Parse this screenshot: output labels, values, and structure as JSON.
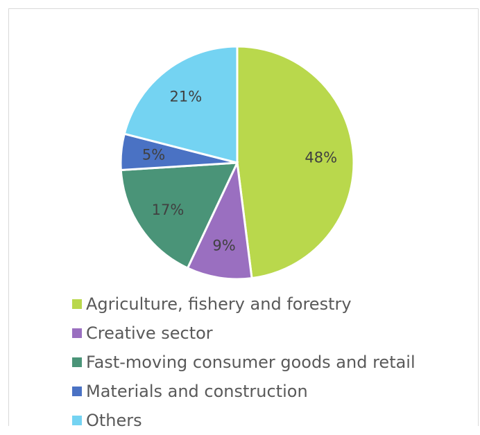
{
  "chart_data": {
    "type": "pie",
    "title": "",
    "categories": [
      "Agriculture, fishery and forestry",
      "Creative sector",
      "Fast-moving consumer goods and retail",
      "Materials and construction",
      "Others"
    ],
    "values": [
      48,
      9,
      17,
      5,
      21
    ],
    "labels": [
      "48%",
      "9%",
      "17%",
      "5%",
      "21%"
    ],
    "colors": [
      "#B9D84C",
      "#9A6FC0",
      "#4A9478",
      "#4A72C4",
      "#74D3F2"
    ],
    "start": "12 o'clock",
    "direction": "clockwise",
    "legend": "bottom"
  },
  "legend": {
    "items": [
      {
        "label": "Agriculture, fishery and forestry",
        "color": "#B9D84C"
      },
      {
        "label": "Creative sector",
        "color": "#9A6FC0"
      },
      {
        "label": "Fast-moving consumer goods and retail",
        "color": "#4A9478"
      },
      {
        "label": "Materials and construction",
        "color": "#4A72C4"
      },
      {
        "label": "Others",
        "color": "#74D3F2"
      }
    ]
  }
}
